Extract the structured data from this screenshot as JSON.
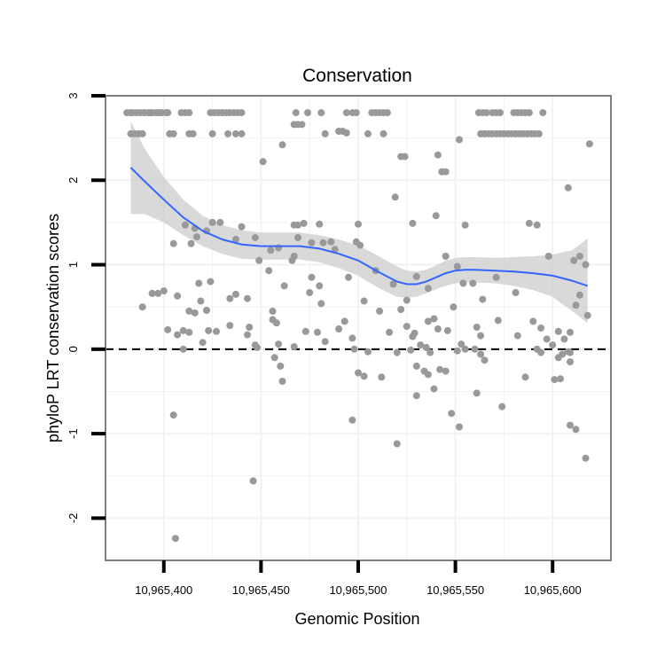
{
  "chart_data": {
    "type": "scatter",
    "title": "Conservation",
    "xlabel": "Genomic Position",
    "ylabel": "phyloP LRT conservation scores",
    "xlim": [
      10965370,
      10965630
    ],
    "ylim": [
      -2.5,
      3.0
    ],
    "x_ticks": [
      {
        "value": 10965400,
        "label": "10,965,400"
      },
      {
        "value": 10965450,
        "label": "10,965,450"
      },
      {
        "value": 10965500,
        "label": "10,965,500"
      },
      {
        "value": 10965550,
        "label": "10,965,550"
      },
      {
        "value": 10965600,
        "label": "10,965,600"
      }
    ],
    "y_ticks": [
      {
        "value": 3,
        "label": "3"
      },
      {
        "value": 2,
        "label": "2"
      },
      {
        "value": 1,
        "label": "1"
      },
      {
        "value": 0,
        "label": "0"
      },
      {
        "value": -1,
        "label": "-1"
      },
      {
        "value": -2,
        "label": "-2"
      }
    ],
    "grid": true,
    "reference_line": {
      "y": 0,
      "style": "dashed",
      "color": "#000000"
    },
    "colors": {
      "points": "#999999",
      "smooth": "#3366ff",
      "band": "#cccccc",
      "panel_border": "#7f7f7f",
      "grid": "#f2f2f2"
    },
    "smooth": {
      "x": [
        10965383,
        10965390,
        10965400,
        10965410,
        10965420,
        10965430,
        10965440,
        10965450,
        10965460,
        10965470,
        10965480,
        10965490,
        10965500,
        10965510,
        10965520,
        10965525,
        10965530,
        10965535,
        10965540,
        10965545,
        10965550,
        10965555,
        10965560,
        10965570,
        10965580,
        10965590,
        10965600,
        10965610,
        10965618
      ],
      "y": [
        2.15,
        1.99,
        1.77,
        1.56,
        1.4,
        1.3,
        1.24,
        1.22,
        1.22,
        1.22,
        1.19,
        1.13,
        1.05,
        0.92,
        0.8,
        0.77,
        0.77,
        0.8,
        0.85,
        0.9,
        0.93,
        0.94,
        0.94,
        0.93,
        0.92,
        0.9,
        0.87,
        0.81,
        0.75
      ],
      "lower": [
        1.6,
        1.6,
        1.5,
        1.35,
        1.22,
        1.13,
        1.07,
        1.06,
        1.06,
        1.06,
        1.03,
        0.96,
        0.87,
        0.73,
        0.62,
        0.61,
        0.62,
        0.66,
        0.71,
        0.75,
        0.78,
        0.79,
        0.79,
        0.78,
        0.75,
        0.7,
        0.62,
        0.45,
        0.31
      ],
      "upper": [
        2.7,
        2.38,
        2.04,
        1.77,
        1.58,
        1.47,
        1.41,
        1.38,
        1.38,
        1.38,
        1.35,
        1.3,
        1.23,
        1.11,
        0.98,
        0.93,
        0.92,
        0.94,
        0.99,
        1.05,
        1.08,
        1.09,
        1.09,
        1.08,
        1.09,
        1.1,
        1.12,
        1.17,
        1.31
      ]
    },
    "points": [
      [
        10965381,
        2.8
      ],
      [
        10965383,
        2.8
      ],
      [
        10965384,
        2.8
      ],
      [
        10965386,
        2.8
      ],
      [
        10965388,
        2.8
      ],
      [
        10965390,
        2.8
      ],
      [
        10965392,
        2.8
      ],
      [
        10965393,
        2.8
      ],
      [
        10965394,
        2.8
      ],
      [
        10965396,
        2.8
      ],
      [
        10965397,
        2.8
      ],
      [
        10965398,
        2.8
      ],
      [
        10965399,
        2.8
      ],
      [
        10965401,
        2.8
      ],
      [
        10965402,
        2.8
      ],
      [
        10965409,
        2.8
      ],
      [
        10965411,
        2.8
      ],
      [
        10965413,
        2.8
      ],
      [
        10965424,
        2.8
      ],
      [
        10965426,
        2.8
      ],
      [
        10965428,
        2.8
      ],
      [
        10965430,
        2.8
      ],
      [
        10965432,
        2.8
      ],
      [
        10965434,
        2.8
      ],
      [
        10965436,
        2.8
      ],
      [
        10965438,
        2.8
      ],
      [
        10965440,
        2.8
      ],
      [
        10965468,
        2.8
      ],
      [
        10965474,
        2.8
      ],
      [
        10965481,
        2.8
      ],
      [
        10965494,
        2.8
      ],
      [
        10965497,
        2.8
      ],
      [
        10965499,
        2.8
      ],
      [
        10965507,
        2.8
      ],
      [
        10965509,
        2.8
      ],
      [
        10965511,
        2.8
      ],
      [
        10965513,
        2.8
      ],
      [
        10965515,
        2.8
      ],
      [
        10965562,
        2.8
      ],
      [
        10965564,
        2.8
      ],
      [
        10965566,
        2.8
      ],
      [
        10965569,
        2.8
      ],
      [
        10965571,
        2.8
      ],
      [
        10965573,
        2.8
      ],
      [
        10965580,
        2.8
      ],
      [
        10965582,
        2.8
      ],
      [
        10965584,
        2.8
      ],
      [
        10965586,
        2.8
      ],
      [
        10965588,
        2.8
      ],
      [
        10965595,
        2.8
      ],
      [
        10965383,
        2.55
      ],
      [
        10965385,
        2.55
      ],
      [
        10965387,
        2.55
      ],
      [
        10965389,
        2.55
      ],
      [
        10965403,
        2.55
      ],
      [
        10965405,
        2.55
      ],
      [
        10965413,
        2.55
      ],
      [
        10965415,
        2.55
      ],
      [
        10965425,
        2.55
      ],
      [
        10965433,
        2.55
      ],
      [
        10965437,
        2.55
      ],
      [
        10965440,
        2.55
      ],
      [
        10965483,
        2.55
      ],
      [
        10965505,
        2.55
      ],
      [
        10965513,
        2.55
      ],
      [
        10965563,
        2.55
      ],
      [
        10965565,
        2.55
      ],
      [
        10965567,
        2.55
      ],
      [
        10965569,
        2.55
      ],
      [
        10965571,
        2.55
      ],
      [
        10965573,
        2.55
      ],
      [
        10965575,
        2.55
      ],
      [
        10965577,
        2.55
      ],
      [
        10965579,
        2.55
      ],
      [
        10965581,
        2.55
      ],
      [
        10965583,
        2.55
      ],
      [
        10965585,
        2.55
      ],
      [
        10965587,
        2.55
      ],
      [
        10965589,
        2.55
      ],
      [
        10965591,
        2.55
      ],
      [
        10965593,
        2.55
      ],
      [
        10965490,
        2.58
      ],
      [
        10965492,
        2.58
      ],
      [
        10965494,
        2.56
      ],
      [
        10965467,
        2.66
      ],
      [
        10965469,
        2.66
      ],
      [
        10965471,
        2.66
      ],
      [
        10965461,
        2.42
      ],
      [
        10965552,
        2.48
      ],
      [
        10965522,
        2.28
      ],
      [
        10965524,
        2.28
      ],
      [
        10965541,
        2.3
      ],
      [
        10965543,
        2.1
      ],
      [
        10965545,
        2.1
      ],
      [
        10965451,
        2.22
      ],
      [
        10965619,
        2.43
      ],
      [
        10965519,
        1.8
      ],
      [
        10965540,
        1.58
      ],
      [
        10965608,
        1.91
      ],
      [
        10965425,
        1.5
      ],
      [
        10965429,
        1.5
      ],
      [
        10965440,
        1.45
      ],
      [
        10965416,
        1.43
      ],
      [
        10965411,
        1.47
      ],
      [
        10965472,
        1.49
      ],
      [
        10965467,
        1.47
      ],
      [
        10965469,
        1.47
      ],
      [
        10965480,
        1.48
      ],
      [
        10965500,
        1.48
      ],
      [
        10965528,
        1.49
      ],
      [
        10965555,
        1.47
      ],
      [
        10965588,
        1.49
      ],
      [
        10965592,
        1.47
      ],
      [
        10965405,
        1.25
      ],
      [
        10965414,
        1.25
      ],
      [
        10965417,
        1.33
      ],
      [
        10965422,
        1.4
      ],
      [
        10965437,
        1.3
      ],
      [
        10965447,
        1.32
      ],
      [
        10965455,
        1.17
      ],
      [
        10965467,
        1.1
      ],
      [
        10965469,
        1.32
      ],
      [
        10965476,
        1.26
      ],
      [
        10965482,
        1.26
      ],
      [
        10965486,
        1.27
      ],
      [
        10965499,
        1.27
      ],
      [
        10965488,
        1.18
      ],
      [
        10965459,
        1.2
      ],
      [
        10965449,
        1.05
      ],
      [
        10965454,
        0.93
      ],
      [
        10965466,
        1.05
      ],
      [
        10965476,
        0.85
      ],
      [
        10965480,
        0.75
      ],
      [
        10965495,
        0.85
      ],
      [
        10965501,
        1.23
      ],
      [
        10965509,
        0.93
      ],
      [
        10965518,
        0.77
      ],
      [
        10965530,
        0.86
      ],
      [
        10965536,
        0.72
      ],
      [
        10965545,
        1.1
      ],
      [
        10965551,
        0.98
      ],
      [
        10965554,
        0.78
      ],
      [
        10965559,
        0.78
      ],
      [
        10965571,
        0.85
      ],
      [
        10965581,
        0.67
      ],
      [
        10965598,
        1.1
      ],
      [
        10965611,
        1.05
      ],
      [
        10965614,
        1.1
      ],
      [
        10965617,
        1.0
      ],
      [
        10965394,
        0.66
      ],
      [
        10965397,
        0.66
      ],
      [
        10965400,
        0.69
      ],
      [
        10965407,
        0.63
      ],
      [
        10965418,
        0.78
      ],
      [
        10965419,
        0.57
      ],
      [
        10965424,
        0.8
      ],
      [
        10965434,
        0.6
      ],
      [
        10965443,
        0.6
      ],
      [
        10965437,
        0.65
      ],
      [
        10965389,
        0.5
      ],
      [
        10965413,
        0.45
      ],
      [
        10965422,
        0.46
      ],
      [
        10965416,
        0.43
      ],
      [
        10965434,
        0.28
      ],
      [
        10965444,
        0.26
      ],
      [
        10965456,
        0.35
      ],
      [
        10965458,
        0.31
      ],
      [
        10965443,
        0.17
      ],
      [
        10965447,
        0.05
      ],
      [
        10965459,
        0.06
      ],
      [
        10965473,
        0.21
      ],
      [
        10965479,
        0.2
      ],
      [
        10965483,
        0.09
      ],
      [
        10965490,
        0.24
      ],
      [
        10965493,
        0.33
      ],
      [
        10965497,
        0.13
      ],
      [
        10965503,
        0.57
      ],
      [
        10965511,
        0.45
      ],
      [
        10965516,
        0.2
      ],
      [
        10965522,
        0.47
      ],
      [
        10965525,
        0.27
      ],
      [
        10965528,
        0.15
      ],
      [
        10965529,
        0.19
      ],
      [
        10965532,
        0.05
      ],
      [
        10965536,
        0.33
      ],
      [
        10965539,
        0.36
      ],
      [
        10965541,
        0.24
      ],
      [
        10965546,
        0.22
      ],
      [
        10965549,
        0.5
      ],
      [
        10965553,
        0.06
      ],
      [
        10965555,
        0.0
      ],
      [
        10965561,
        0.26
      ],
      [
        10965563,
        0.16
      ],
      [
        10965564,
        0.59
      ],
      [
        10965572,
        0.34
      ],
      [
        10965582,
        0.16
      ],
      [
        10965590,
        0.33
      ],
      [
        10965594,
        0.25
      ],
      [
        10965597,
        0.12
      ],
      [
        10965600,
        0.05
      ],
      [
        10965603,
        0.21
      ],
      [
        10965606,
        0.12
      ],
      [
        10965609,
        0.2
      ],
      [
        10965612,
        0.52
      ],
      [
        10965614,
        0.64
      ],
      [
        10965618,
        0.4
      ],
      [
        10965402,
        0.23
      ],
      [
        10965407,
        0.17
      ],
      [
        10965410,
        0.22
      ],
      [
        10965413,
        0.2
      ],
      [
        10965420,
        0.08
      ],
      [
        10965423,
        0.22
      ],
      [
        10965427,
        0.21
      ],
      [
        10965456,
        0.45
      ],
      [
        10965462,
        0.75
      ],
      [
        10965475,
        0.67
      ],
      [
        10965481,
        0.54
      ],
      [
        10965525,
        0.58
      ],
      [
        10965410,
        0.0
      ],
      [
        10965448,
        0.02
      ],
      [
        10965467,
        0.03
      ],
      [
        10965498,
        0.0
      ],
      [
        10965505,
        -0.03
      ],
      [
        10965520,
        -0.04
      ],
      [
        10965527,
        -0.01
      ],
      [
        10965535,
        0.02
      ],
      [
        10965537,
        -0.04
      ],
      [
        10965551,
        -0.02
      ],
      [
        10965560,
        0.0
      ],
      [
        10965563,
        -0.06
      ],
      [
        10965565,
        -0.13
      ],
      [
        10965592,
        0.0
      ],
      [
        10965594,
        -0.04
      ],
      [
        10965603,
        -0.1
      ],
      [
        10965605,
        -0.06
      ],
      [
        10965608,
        -0.03
      ],
      [
        10965609,
        -0.04
      ],
      [
        10965457,
        -0.1
      ],
      [
        10965460,
        -0.2
      ],
      [
        10965530,
        -0.2
      ],
      [
        10965534,
        -0.26
      ],
      [
        10965542,
        -0.24
      ],
      [
        10965545,
        -0.26
      ],
      [
        10965500,
        -0.28
      ],
      [
        10965503,
        -0.32
      ],
      [
        10965512,
        -0.33
      ],
      [
        10965536,
        -0.3
      ],
      [
        10965539,
        -0.47
      ],
      [
        10965561,
        -0.52
      ],
      [
        10965586,
        -0.33
      ],
      [
        10965601,
        -0.36
      ],
      [
        10965604,
        -0.35
      ],
      [
        10965609,
        -0.15
      ],
      [
        10965461,
        -0.38
      ],
      [
        10965530,
        -0.55
      ],
      [
        10965497,
        -0.84
      ],
      [
        10965405,
        -0.78
      ],
      [
        10965520,
        -1.12
      ],
      [
        10965548,
        -0.76
      ],
      [
        10965552,
        -0.92
      ],
      [
        10965574,
        -0.68
      ],
      [
        10965609,
        -0.9
      ],
      [
        10965612,
        -0.95
      ],
      [
        10965617,
        -1.29
      ],
      [
        10965446,
        -1.56
      ],
      [
        10965406,
        -2.24
      ]
    ]
  }
}
